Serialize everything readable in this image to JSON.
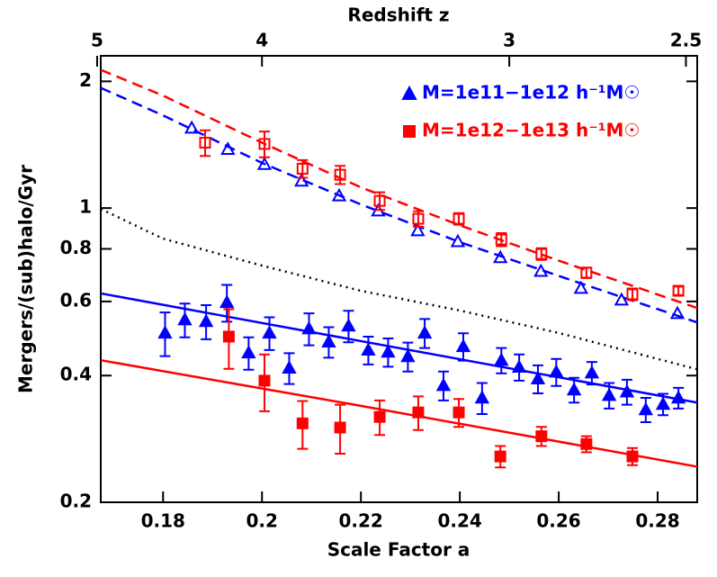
{
  "chart_data": {
    "type": "scatter",
    "xlabel": "Scale Factor a",
    "ylabel": "Mergers/(sub)halo/Gyr",
    "x2label": "Redshift z",
    "xlim": [
      0.1674,
      0.288
    ],
    "xticks": [
      0.18,
      0.2,
      0.22,
      0.24,
      0.26,
      0.28
    ],
    "ylim": [
      0.2,
      2.3
    ],
    "yticks": [
      0.2,
      0.4,
      0.6,
      0.8,
      1,
      2
    ],
    "ylog": true,
    "x2ticks": [
      5,
      4,
      3,
      2.5
    ],
    "legend": "top-right",
    "series": [
      {
        "color": "#ff0000",
        "line": "dashed",
        "x": [
          0.1674,
          0.18,
          0.2,
          0.22,
          0.24,
          0.26,
          0.288
        ],
        "values": [
          2.13,
          1.85,
          1.43,
          1.12,
          0.91,
          0.75,
          0.579
        ]
      },
      {
        "color": "#0000ff",
        "line": "dashed",
        "x": [
          0.1674,
          0.18,
          0.2,
          0.22,
          0.24,
          0.26,
          0.288
        ],
        "values": [
          1.93,
          1.66,
          1.28,
          1.02,
          0.83,
          0.69,
          0.535
        ]
      },
      {
        "color": "#000000",
        "line": "dotted",
        "x": [
          0.1674,
          0.18,
          0.2,
          0.22,
          0.24,
          0.26,
          0.288
        ],
        "values": [
          0.995,
          0.846,
          0.73,
          0.636,
          0.571,
          0.505,
          0.414
        ]
      },
      {
        "color": "#0000ff",
        "line": "solid",
        "x": [
          0.1674,
          0.22,
          0.288
        ],
        "values": [
          0.627,
          0.483,
          0.345
        ]
      },
      {
        "color": "#ff0000",
        "line": "solid",
        "x": [
          0.1674,
          0.22,
          0.288
        ],
        "values": [
          0.435,
          0.339,
          0.243
        ]
      },
      {
        "color": "#0000ff",
        "marker": "triangle-open",
        "x": [
          0.1858,
          0.1931,
          0.2005,
          0.208,
          0.2156,
          0.2235,
          0.2315,
          0.2396,
          0.2482,
          0.2564,
          0.2645,
          0.2727,
          0.284
        ],
        "values": [
          1.55,
          1.38,
          1.27,
          1.16,
          1.07,
          0.985,
          0.884,
          0.833,
          0.763,
          0.708,
          0.645,
          0.605,
          0.562
        ]
      },
      {
        "color": "#ff0000",
        "marker": "square-open",
        "x": [
          0.1885,
          0.2005,
          0.2082,
          0.2158,
          0.2238,
          0.2316,
          0.2398,
          0.2484,
          0.2565,
          0.2656,
          0.2749,
          0.2842
        ],
        "values": [
          1.43,
          1.42,
          1.24,
          1.2,
          1.04,
          0.943,
          0.943,
          0.842,
          0.778,
          0.702,
          0.624,
          0.636
        ],
        "errors": [
          0.1,
          0.1,
          0.06,
          0.06,
          0.05,
          0.04,
          0.03,
          0.03,
          0.025,
          0.02,
          0.02,
          0.015
        ]
      },
      {
        "name": "M=1e11−1e12 h⁻¹M☉",
        "color": "#0000ff",
        "marker": "triangle",
        "x": [
          0.1804,
          0.1844,
          0.1887,
          0.1929,
          0.1973,
          0.2015,
          0.2055,
          0.2095,
          0.2135,
          0.2175,
          0.2215,
          0.2255,
          0.2295,
          0.2329,
          0.2367,
          0.2407,
          0.2445,
          0.2484,
          0.252,
          0.2558,
          0.2595,
          0.2631,
          0.2667,
          0.2702,
          0.2738,
          0.2776,
          0.2811,
          0.2842
        ],
        "values": [
          0.505,
          0.543,
          0.538,
          0.597,
          0.453,
          0.505,
          0.417,
          0.517,
          0.481,
          0.525,
          0.46,
          0.455,
          0.444,
          0.505,
          0.379,
          0.469,
          0.354,
          0.435,
          0.419,
          0.393,
          0.408,
          0.37,
          0.406,
          0.359,
          0.366,
          0.332,
          0.342,
          0.354
        ],
        "errors": [
          0.06,
          0.05,
          0.05,
          0.06,
          0.04,
          0.045,
          0.035,
          0.045,
          0.04,
          0.045,
          0.035,
          0.035,
          0.035,
          0.04,
          0.03,
          0.035,
          0.03,
          0.03,
          0.03,
          0.03,
          0.03,
          0.025,
          0.025,
          0.025,
          0.025,
          0.022,
          0.02,
          0.02
        ]
      },
      {
        "name": "M=1e12−1e13 h⁻¹M☉",
        "color": "#ff0000",
        "marker": "square",
        "x": [
          0.1933,
          0.2005,
          0.2082,
          0.2158,
          0.2238,
          0.2316,
          0.2398,
          0.2482,
          0.2565,
          0.2656,
          0.2749
        ],
        "values": [
          0.495,
          0.389,
          0.308,
          0.301,
          0.319,
          0.327,
          0.327,
          0.257,
          0.287,
          0.275,
          0.257
        ],
        "errors": [
          0.08,
          0.06,
          0.04,
          0.04,
          0.03,
          0.03,
          0.025,
          0.015,
          0.015,
          0.012,
          0.012
        ]
      }
    ]
  }
}
